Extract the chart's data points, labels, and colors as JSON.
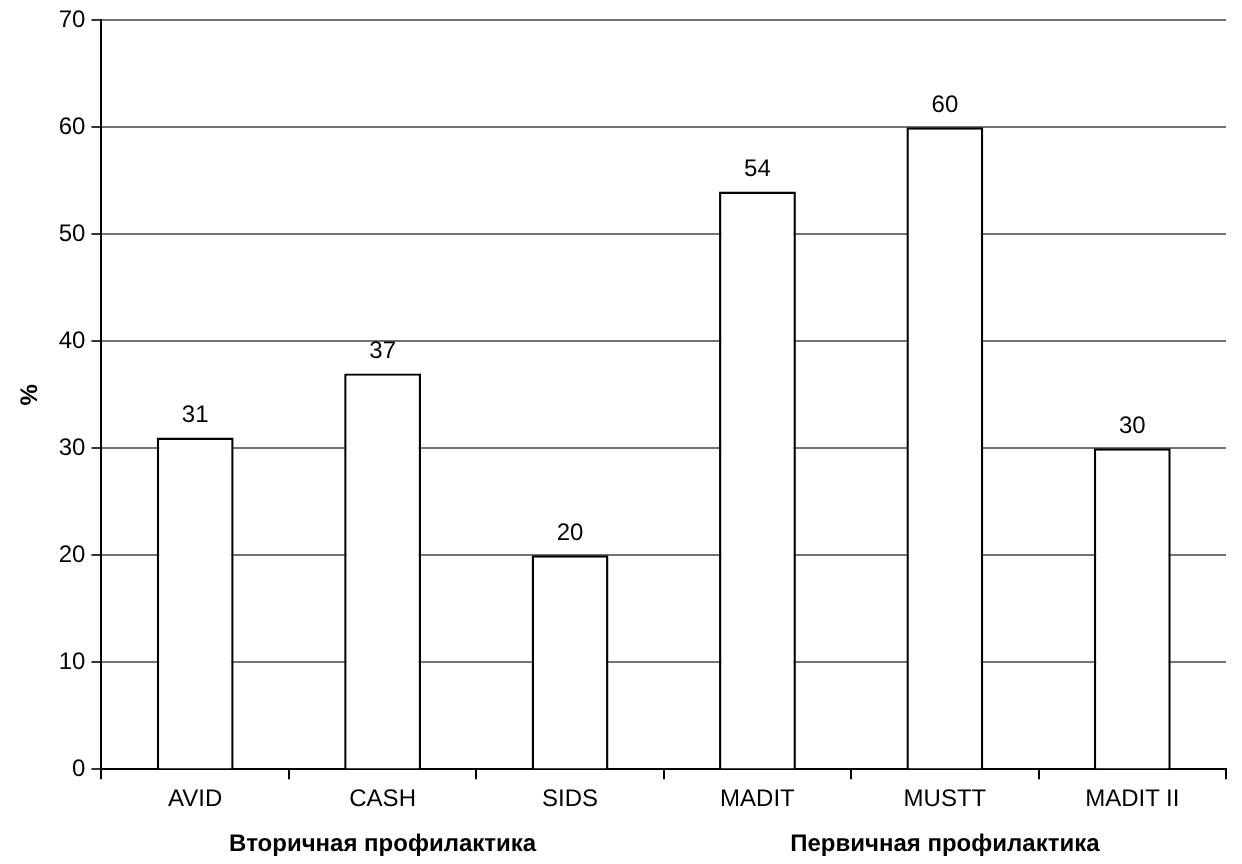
{
  "chart_data": {
    "type": "bar",
    "ylabel": "%",
    "categories": [
      "AVID",
      "CASH",
      "SIDS",
      "MADIT",
      "MUSTT",
      "MADIT II"
    ],
    "values": [
      31,
      37,
      20,
      54,
      60,
      30
    ],
    "color": "#ffffff",
    "ylim": [
      0,
      70
    ],
    "yticks": [
      0,
      10,
      20,
      30,
      40,
      50,
      60,
      70
    ],
    "grid": "y",
    "legend": false,
    "data_labels": true,
    "annotations": [
      "Вторичная профилактика",
      "Первичная профилактика"
    ]
  }
}
